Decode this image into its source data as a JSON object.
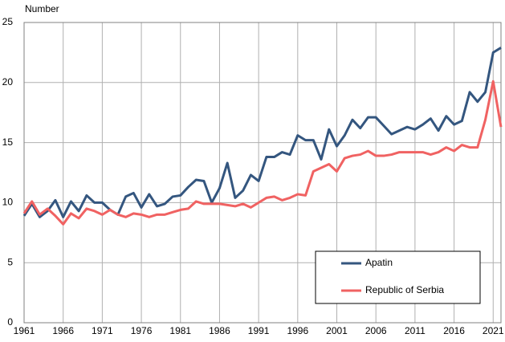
{
  "chart_data": {
    "type": "line",
    "y_label": "Number",
    "x": [
      1961,
      1962,
      1963,
      1964,
      1965,
      1966,
      1967,
      1968,
      1969,
      1970,
      1971,
      1972,
      1973,
      1974,
      1975,
      1976,
      1977,
      1978,
      1979,
      1980,
      1981,
      1982,
      1983,
      1984,
      1985,
      1986,
      1987,
      1988,
      1989,
      1990,
      1991,
      1992,
      1993,
      1994,
      1995,
      1996,
      1997,
      1998,
      1999,
      2000,
      2001,
      2002,
      2003,
      2004,
      2005,
      2006,
      2007,
      2008,
      2009,
      2010,
      2011,
      2012,
      2013,
      2014,
      2015,
      2016,
      2017,
      2018,
      2019,
      2020,
      2021,
      2022
    ],
    "series": [
      {
        "name": "Apatin",
        "color": "#34567f",
        "values": [
          8.9,
          9.9,
          8.8,
          9.3,
          10.2,
          8.8,
          10.1,
          9.3,
          10.6,
          10.0,
          10.0,
          9.4,
          9.0,
          10.5,
          10.8,
          9.6,
          10.7,
          9.7,
          9.9,
          10.5,
          10.6,
          11.3,
          11.9,
          11.8,
          10.0,
          11.2,
          13.3,
          10.4,
          11.0,
          12.3,
          11.8,
          13.8,
          13.8,
          14.2,
          14.0,
          15.6,
          15.2,
          15.2,
          13.6,
          16.1,
          14.7,
          15.6,
          16.9,
          16.2,
          17.1,
          17.1,
          16.4,
          15.7,
          16.0,
          16.3,
          16.1,
          16.5,
          17.0,
          16.0,
          17.2,
          16.5,
          16.8,
          19.2,
          18.4,
          19.2,
          22.5,
          22.9
        ]
      },
      {
        "name": "Republic of Serbia",
        "color": "#f06262",
        "values": [
          9.1,
          10.1,
          9.0,
          9.5,
          8.9,
          8.2,
          9.1,
          8.7,
          9.5,
          9.3,
          9.0,
          9.4,
          9.0,
          8.8,
          9.1,
          9.0,
          8.8,
          9.0,
          9.0,
          9.2,
          9.4,
          9.5,
          10.1,
          9.9,
          9.9,
          9.9,
          9.8,
          9.7,
          9.9,
          9.6,
          10.0,
          10.4,
          10.5,
          10.2,
          10.4,
          10.7,
          10.6,
          12.6,
          12.9,
          13.2,
          12.6,
          13.7,
          13.9,
          14.0,
          14.3,
          13.9,
          13.9,
          14.0,
          14.2,
          14.2,
          14.2,
          14.2,
          14.0,
          14.2,
          14.6,
          14.3,
          14.8,
          14.6,
          14.6,
          16.9,
          20.1,
          16.3
        ]
      }
    ],
    "xlim": [
      1961,
      2022
    ],
    "xticks": [
      1961,
      1966,
      1971,
      1976,
      1981,
      1986,
      1991,
      1996,
      2001,
      2006,
      2011,
      2016,
      2021
    ],
    "ylim": [
      0,
      25
    ],
    "yticks": [
      0,
      5,
      10,
      15,
      20,
      25
    ],
    "grid": true,
    "legend": "lower right"
  }
}
